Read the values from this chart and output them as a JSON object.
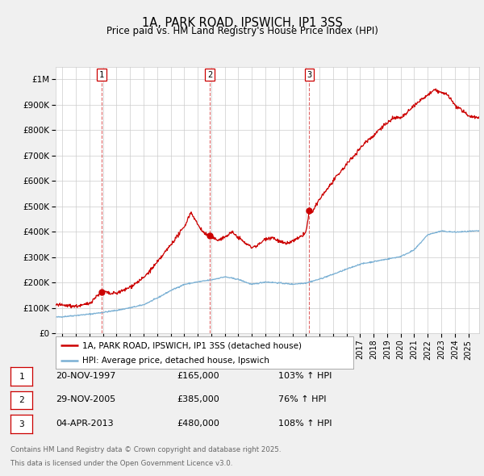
{
  "title": "1A, PARK ROAD, IPSWICH, IP1 3SS",
  "subtitle": "Price paid vs. HM Land Registry's House Price Index (HPI)",
  "ylim": [
    0,
    1050000
  ],
  "yticks": [
    0,
    100000,
    200000,
    300000,
    400000,
    500000,
    600000,
    700000,
    800000,
    900000,
    1000000
  ],
  "ytick_labels": [
    "£0",
    "£100K",
    "£200K",
    "£300K",
    "£400K",
    "£500K",
    "£600K",
    "£700K",
    "£800K",
    "£900K",
    "£1M"
  ],
  "xlim_start": 1994.5,
  "xlim_end": 2025.8,
  "red_color": "#cc0000",
  "blue_color": "#7ab0d4",
  "background_color": "#f0f0f0",
  "plot_bg_color": "#ffffff",
  "grid_color": "#cccccc",
  "legend_label_red": "1A, PARK ROAD, IPSWICH, IP1 3SS (detached house)",
  "legend_label_blue": "HPI: Average price, detached house, Ipswich",
  "sales": [
    {
      "num": 1,
      "date_label": "20-NOV-1997",
      "price_label": "£165,000",
      "pct_label": "103% ↑ HPI",
      "year": 1997.9
    },
    {
      "num": 2,
      "date_label": "29-NOV-2005",
      "price_label": "£385,000",
      "pct_label": "76% ↑ HPI",
      "year": 2005.9
    },
    {
      "num": 3,
      "date_label": "04-APR-2013",
      "price_label": "£480,000",
      "pct_label": "108% ↑ HPI",
      "year": 2013.25
    }
  ],
  "footer_line1": "Contains HM Land Registry data © Crown copyright and database right 2025.",
  "footer_line2": "This data is licensed under the Open Government Licence v3.0."
}
